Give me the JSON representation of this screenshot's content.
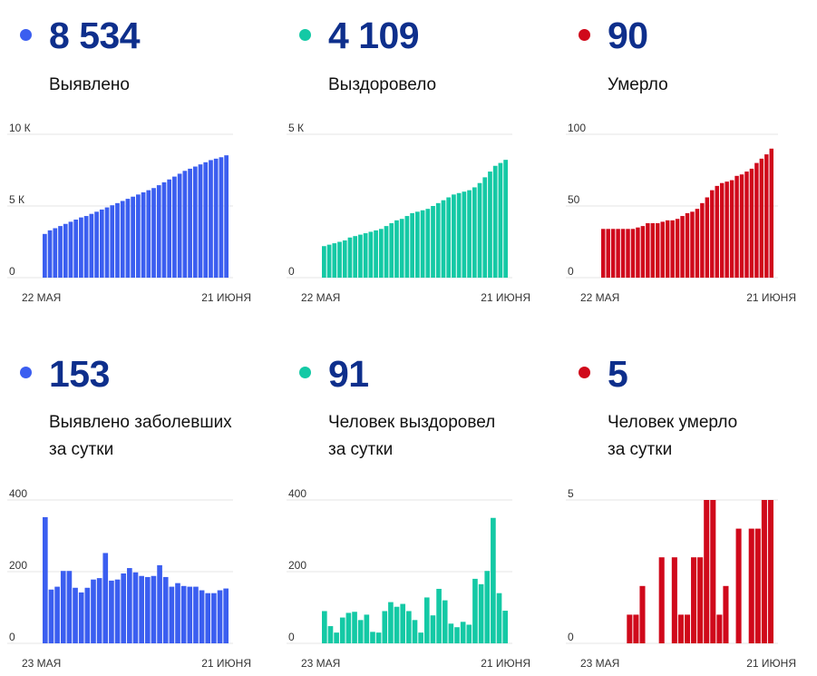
{
  "colors": {
    "blue": "#3b5ef0",
    "green": "#14c9a5",
    "red": "#d0091b",
    "number": "#0e2f8c"
  },
  "panels": [
    {
      "value": "8 534",
      "label1": "Выявлено",
      "label2": "",
      "color": "blue",
      "chart_data": {
        "type": "bar",
        "yticks": [
          "10 К",
          "5 К",
          "0"
        ],
        "ytick_values": [
          10000,
          5000,
          0
        ],
        "ylim": [
          0,
          10000
        ],
        "xlabels": [
          "22 МАЯ",
          "21 ИЮНЯ"
        ],
        "values": [
          3050,
          3300,
          3450,
          3600,
          3750,
          3900,
          4050,
          4200,
          4300,
          4450,
          4600,
          4750,
          4900,
          5050,
          5200,
          5350,
          5500,
          5650,
          5800,
          5950,
          6100,
          6250,
          6450,
          6650,
          6850,
          7050,
          7250,
          7450,
          7600,
          7750,
          7900,
          8050,
          8200,
          8300,
          8400,
          8534
        ]
      }
    },
    {
      "value": "4 109",
      "label1": "Выздоровело",
      "label2": "",
      "color": "green",
      "chart_data": {
        "type": "bar",
        "yticks": [
          "5 К",
          "0"
        ],
        "ytick_values": [
          5000,
          0
        ],
        "ylim": [
          0,
          5000
        ],
        "xlabels": [
          "22 МАЯ",
          "21 ИЮНЯ"
        ],
        "values": [
          1100,
          1150,
          1200,
          1250,
          1300,
          1400,
          1450,
          1500,
          1550,
          1600,
          1650,
          1700,
          1800,
          1900,
          2000,
          2050,
          2150,
          2250,
          2300,
          2350,
          2400,
          2500,
          2600,
          2700,
          2800,
          2900,
          2950,
          3000,
          3050,
          3150,
          3300,
          3500,
          3700,
          3900,
          4000,
          4109
        ]
      }
    },
    {
      "value": "90",
      "label1": "Умерло",
      "label2": "",
      "color": "red",
      "chart_data": {
        "type": "bar",
        "yticks": [
          "100",
          "50",
          "0"
        ],
        "ytick_values": [
          100,
          50,
          0
        ],
        "ylim": [
          0,
          100
        ],
        "xlabels": [
          "22 МАЯ",
          "21 ИЮНЯ"
        ],
        "values": [
          34,
          34,
          34,
          34,
          34,
          34,
          34,
          35,
          36,
          38,
          38,
          38,
          39,
          40,
          40,
          41,
          43,
          45,
          46,
          48,
          52,
          56,
          61,
          64,
          66,
          67,
          68,
          71,
          72,
          74,
          76,
          80,
          83,
          86,
          90
        ]
      }
    },
    {
      "value": "153",
      "label1": "Выявлено заболевших",
      "label2": "за сутки",
      "color": "blue",
      "chart_data": {
        "type": "bar",
        "yticks": [
          "400",
          "200",
          "0"
        ],
        "ytick_values": [
          400,
          200,
          0
        ],
        "ylim": [
          0,
          400
        ],
        "xlabels": [
          "23 МАЯ",
          "21 ИЮНЯ"
        ],
        "values": [
          352,
          150,
          158,
          202,
          202,
          155,
          142,
          155,
          178,
          182,
          252,
          175,
          178,
          195,
          210,
          198,
          188,
          185,
          188,
          218,
          185,
          158,
          168,
          160,
          158,
          158,
          148,
          140,
          140,
          148,
          153
        ]
      }
    },
    {
      "value": "91",
      "label1": "Человек выздоровел",
      "label2": "за сутки",
      "color": "green",
      "chart_data": {
        "type": "bar",
        "yticks": [
          "400",
          "200",
          "0"
        ],
        "ytick_values": [
          400,
          200,
          0
        ],
        "ylim": [
          0,
          400
        ],
        "xlabels": [
          "23 МАЯ",
          "21 ИЮНЯ"
        ],
        "values": [
          90,
          48,
          30,
          72,
          85,
          88,
          65,
          80,
          32,
          30,
          90,
          115,
          102,
          110,
          90,
          65,
          30,
          128,
          78,
          152,
          120,
          55,
          45,
          60,
          52,
          180,
          165,
          202,
          350,
          140,
          91
        ]
      }
    },
    {
      "value": "5",
      "label1": "Человек умерло",
      "label2": "за сутки",
      "color": "red",
      "chart_data": {
        "type": "bar",
        "yticks": [
          "5",
          "0"
        ],
        "ytick_values": [
          5,
          0
        ],
        "ylim": [
          0,
          5
        ],
        "xlabels": [
          "23 МАЯ",
          "21 ИЮНЯ"
        ],
        "values": [
          0,
          0,
          0,
          0,
          1,
          1,
          2,
          0,
          0,
          3,
          0,
          3,
          1,
          1,
          3,
          3,
          5,
          5,
          1,
          2,
          0,
          4,
          0,
          4,
          4,
          5,
          5
        ]
      }
    }
  ]
}
